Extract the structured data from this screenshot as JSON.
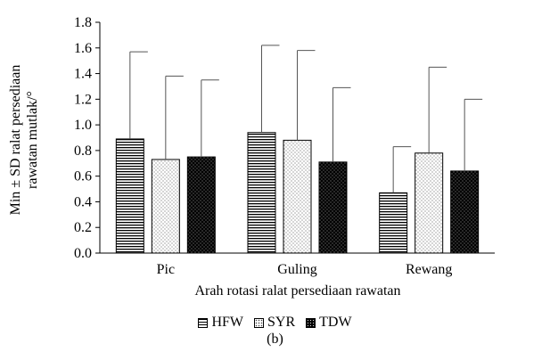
{
  "chart_data": {
    "type": "bar",
    "categories": [
      "Pic",
      "Guling",
      "Rewang"
    ],
    "series": [
      {
        "name": "HFW",
        "values": [
          0.89,
          0.94,
          0.47
        ],
        "errors": [
          0.68,
          0.68,
          0.36
        ]
      },
      {
        "name": "SYR",
        "values": [
          0.73,
          0.88,
          0.78
        ],
        "errors": [
          0.65,
          0.7,
          0.67
        ]
      },
      {
        "name": "TDW",
        "values": [
          0.75,
          0.71,
          0.64
        ],
        "errors": [
          0.6,
          0.58,
          0.56
        ]
      }
    ],
    "xlabel": "Arah rotasi ralat persediaan rawatan",
    "ylabel_line1": "Min ± SD ralat persediaan",
    "ylabel_line2": "rawatan mutlak/°",
    "ylim": [
      0,
      1.8
    ],
    "yticks": [
      "0.0",
      "0.2",
      "0.4",
      "0.6",
      "0.8",
      "1.0",
      "1.2",
      "1.4",
      "1.6",
      "1.8"
    ],
    "grid": false,
    "legend_position": "bottom",
    "caption": "(b)"
  }
}
